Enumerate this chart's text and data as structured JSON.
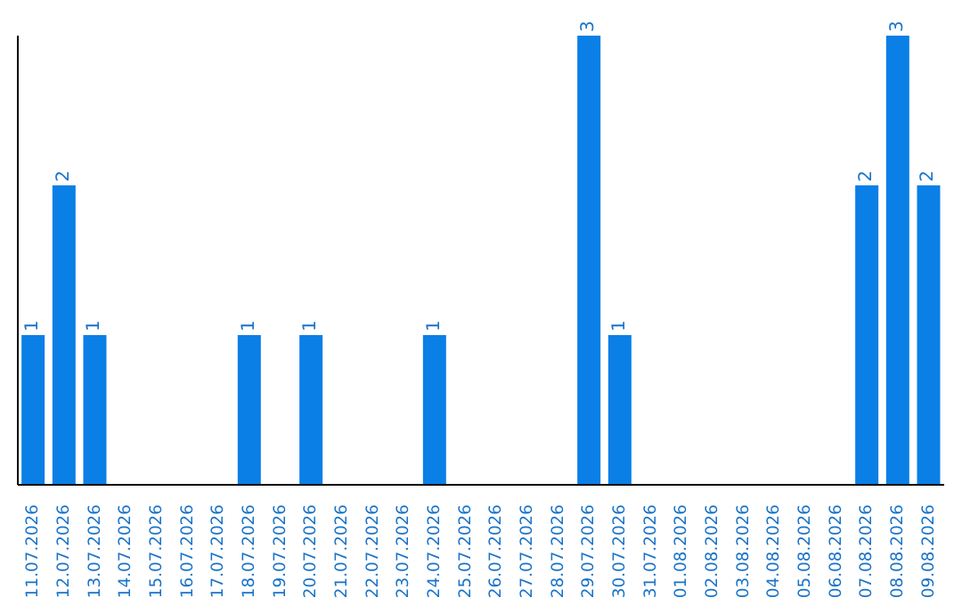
{
  "chart_data": {
    "type": "bar",
    "categories": [
      "11.07.2026",
      "12.07.2026",
      "13.07.2026",
      "14.07.2026",
      "15.07.2026",
      "16.07.2026",
      "17.07.2026",
      "18.07.2026",
      "19.07.2026",
      "20.07.2026",
      "21.07.2026",
      "22.07.2026",
      "23.07.2026",
      "24.07.2026",
      "25.07.2026",
      "26.07.2026",
      "27.07.2026",
      "28.07.2026",
      "29.07.2026",
      "30.07.2026",
      "31.07.2026",
      "01.08.2026",
      "02.08.2026",
      "03.08.2026",
      "04.08.2026",
      "05.08.2026",
      "06.08.2026",
      "07.08.2026",
      "08.08.2026",
      "09.08.2026"
    ],
    "values": [
      1,
      2,
      1,
      0,
      0,
      0,
      0,
      1,
      0,
      1,
      0,
      0,
      0,
      1,
      0,
      0,
      0,
      0,
      3,
      1,
      0,
      0,
      0,
      0,
      0,
      0,
      0,
      2,
      3,
      2
    ],
    "value_labels": [
      "1",
      "2",
      "1",
      null,
      null,
      null,
      null,
      "1",
      null,
      "1",
      null,
      null,
      null,
      "1",
      null,
      null,
      null,
      null,
      "3",
      "1",
      null,
      null,
      null,
      null,
      null,
      null,
      null,
      "2",
      "3",
      "2"
    ],
    "color": "#0a7fe6",
    "tick_labels": "x",
    "grid": false,
    "legend": false
  }
}
